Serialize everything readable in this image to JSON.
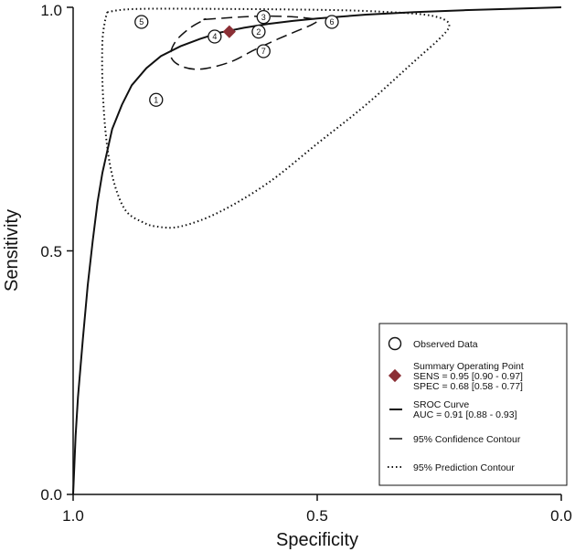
{
  "chart_data": {
    "type": "scatter",
    "xlabel": "Specificity",
    "ylabel": "Sensitivity",
    "xlim": [
      1.0,
      0.0
    ],
    "ylim": [
      0.0,
      1.0
    ],
    "x_ticks": [
      "1.0",
      "0.5",
      "0.0"
    ],
    "y_ticks": [
      "0.0",
      "0.5",
      "1.0"
    ],
    "grid": false,
    "legend_position": "bottom-right",
    "observed_data": [
      {
        "label": "1",
        "specificity": 0.83,
        "sensitivity": 0.81
      },
      {
        "label": "2",
        "specificity": 0.62,
        "sensitivity": 0.95
      },
      {
        "label": "3",
        "specificity": 0.61,
        "sensitivity": 0.98
      },
      {
        "label": "4",
        "specificity": 0.71,
        "sensitivity": 0.94
      },
      {
        "label": "5",
        "specificity": 0.86,
        "sensitivity": 0.97
      },
      {
        "label": "6",
        "specificity": 0.47,
        "sensitivity": 0.97
      },
      {
        "label": "7",
        "specificity": 0.61,
        "sensitivity": 0.91
      }
    ],
    "summary_point": {
      "specificity": 0.68,
      "sensitivity": 0.95,
      "color": "#8b2f35"
    },
    "sroc_curve": {
      "specificity": [
        1.0,
        0.995,
        0.99,
        0.98,
        0.97,
        0.96,
        0.95,
        0.94,
        0.92,
        0.9,
        0.88,
        0.85,
        0.82,
        0.78,
        0.74,
        0.7,
        0.65,
        0.6,
        0.55,
        0.5,
        0.45,
        0.4,
        0.3,
        0.2,
        0.1,
        0.0
      ],
      "sensitivity": [
        0.0,
        0.12,
        0.2,
        0.32,
        0.43,
        0.52,
        0.6,
        0.66,
        0.75,
        0.8,
        0.84,
        0.875,
        0.9,
        0.92,
        0.935,
        0.948,
        0.958,
        0.966,
        0.972,
        0.977,
        0.981,
        0.985,
        0.99,
        0.994,
        0.997,
        1.0
      ]
    },
    "confidence_contour": {
      "specificity": [
        0.73,
        0.69,
        0.64,
        0.6,
        0.56,
        0.53,
        0.5,
        0.51,
        0.54,
        0.58,
        0.63,
        0.68,
        0.74,
        0.78,
        0.8,
        0.79,
        0.76,
        0.73
      ],
      "sensitivity": [
        0.975,
        0.978,
        0.981,
        0.982,
        0.981,
        0.979,
        0.974,
        0.965,
        0.952,
        0.935,
        0.912,
        0.887,
        0.873,
        0.88,
        0.9,
        0.93,
        0.958,
        0.975
      ]
    },
    "prediction_contour": {
      "specificity": [
        0.93,
        0.9,
        0.85,
        0.75,
        0.6,
        0.45,
        0.35,
        0.28,
        0.24,
        0.23,
        0.25,
        0.3,
        0.4,
        0.5,
        0.6,
        0.7,
        0.78,
        0.83,
        0.86,
        0.89,
        0.91,
        0.925,
        0.935,
        0.94,
        0.94,
        0.935,
        0.93
      ],
      "sensitivity": [
        0.99,
        0.995,
        0.997,
        0.997,
        0.996,
        0.994,
        0.99,
        0.985,
        0.975,
        0.96,
        0.935,
        0.89,
        0.8,
        0.72,
        0.64,
        0.58,
        0.55,
        0.55,
        0.56,
        0.58,
        0.62,
        0.68,
        0.76,
        0.85,
        0.93,
        0.97,
        0.99
      ]
    }
  },
  "legend": {
    "observed": "Observed Data",
    "summary_title": "Summary Operating Point",
    "summary_sens": "SENS = 0.95 [0.90 - 0.97]",
    "summary_spec": "SPEC = 0.68 [0.58 - 0.77]",
    "sroc_title": "SROC Curve",
    "sroc_auc": "AUC = 0.91 [0.88 - 0.93]",
    "confidence": "95% Confidence Contour",
    "prediction": "95% Prediction Contour"
  }
}
